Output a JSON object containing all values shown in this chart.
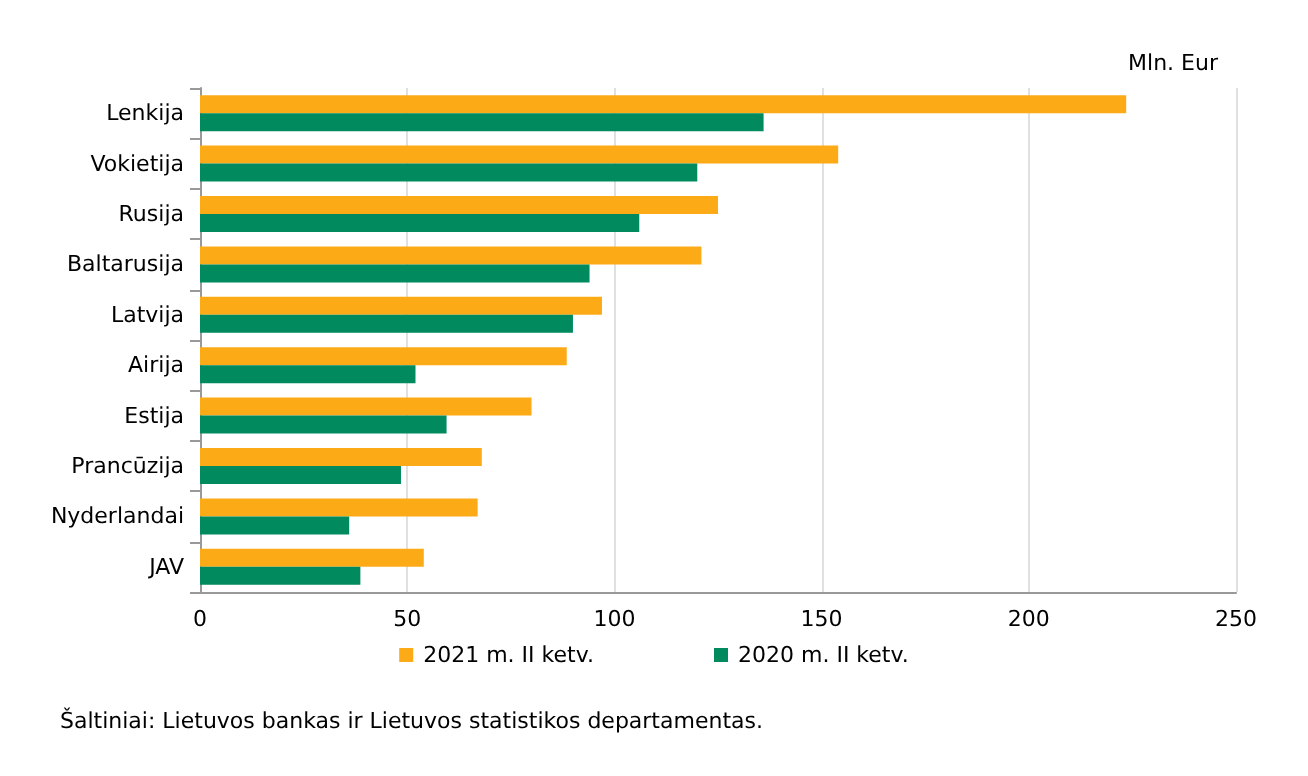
{
  "chart_data": {
    "type": "bar",
    "orientation": "horizontal",
    "xlabel": "Mln. Eur",
    "categories": [
      "Lenkija",
      "Vokietija",
      "Rusija",
      "Baltarusija",
      "Latvija",
      "Airija",
      "Estija",
      "Prancūzija",
      "Nyderlandai",
      "JAV"
    ],
    "series": [
      {
        "name": "2021 m. II ketv.",
        "color": "#fdaa17",
        "values": [
          223.5,
          154,
          125,
          121,
          97,
          88.5,
          80,
          68,
          67,
          54
        ]
      },
      {
        "name": "2020 m. II ketv.",
        "color": "#008a5e",
        "values": [
          136,
          120,
          106,
          94,
          90,
          52,
          59.5,
          48.5,
          36,
          38.7
        ]
      }
    ],
    "xlim": [
      0,
      250
    ],
    "xticks": [
      0,
      50,
      100,
      150,
      200,
      250
    ],
    "grid": "x",
    "legend": "bottom",
    "annotations": [
      "Šaltiniai: Lietuvos bankas ir Lietuvos statistikos departamentas."
    ]
  }
}
